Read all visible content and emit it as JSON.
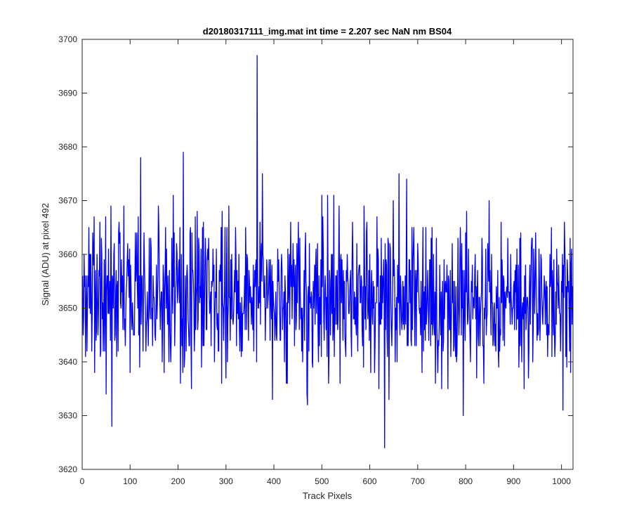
{
  "chart_data": {
    "type": "line",
    "title": "d20180317111_img.mat int time = 2.207 sec  NaN nm BS04",
    "xlabel": "Track Pixels",
    "ylabel": "Signal (ADU) at pixel 492",
    "xlim": [
      0,
      1024
    ],
    "ylim": [
      3620,
      3700
    ],
    "xticks": [
      0,
      100,
      200,
      300,
      400,
      500,
      600,
      700,
      800,
      900,
      1000
    ],
    "yticks": [
      3620,
      3630,
      3640,
      3650,
      3660,
      3670,
      3680,
      3690,
      3700
    ],
    "grid": false,
    "line_color": "#0000ff",
    "series": [
      {
        "x_start": 1,
        "x_step": 1,
        "noise_center": 3652,
        "count": 1024,
        "notable_points": [
          {
            "x": 62,
            "y": 3628
          },
          {
            "x": 122,
            "y": 3678
          },
          {
            "x": 211,
            "y": 3679
          },
          {
            "x": 365,
            "y": 3697
          },
          {
            "x": 376,
            "y": 3675
          },
          {
            "x": 631,
            "y": 3624
          },
          {
            "x": 661,
            "y": 3675
          },
          {
            "x": 1003,
            "y": 3631
          }
        ]
      }
    ]
  }
}
